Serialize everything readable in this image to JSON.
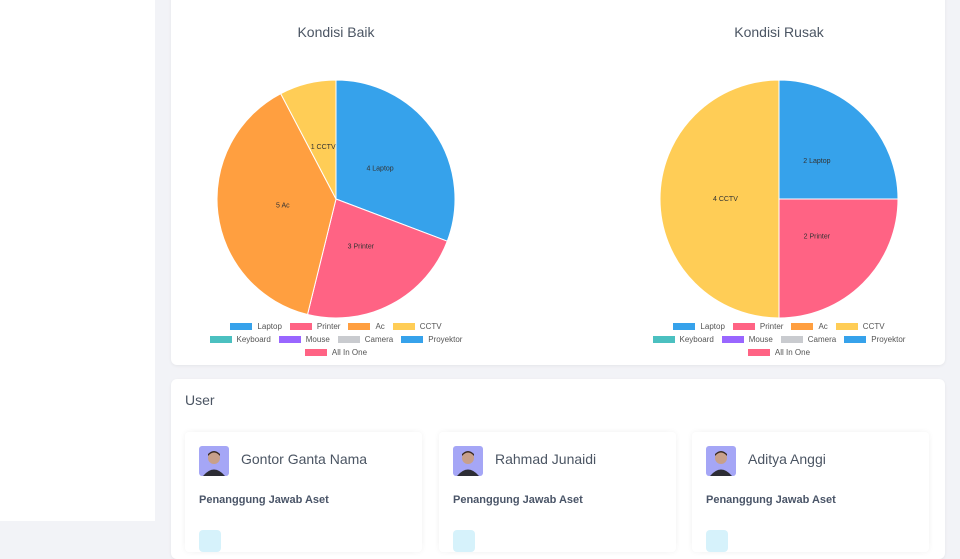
{
  "chart_data": [
    {
      "type": "pie",
      "title": "Kondisi Baik",
      "categories": [
        "Laptop",
        "Printer",
        "Ac",
        "CCTV",
        "Keyboard",
        "Mouse",
        "Camera",
        "Proyektor",
        "All In One"
      ],
      "values": [
        4,
        3,
        5,
        1,
        0,
        0,
        0,
        0,
        0
      ],
      "value_labels": [
        "4 Laptop",
        "3 Printer",
        "5 Ac",
        "1 CCTV",
        null,
        null,
        null,
        null,
        null
      ],
      "colors": [
        "#36a2eb",
        "#ff6384",
        "#ff9f40",
        "#ffcd56",
        "#4bc0c0",
        "#9966ff",
        "#c9cbcf",
        "#36a2eb",
        "#ff6384"
      ]
    },
    {
      "type": "pie",
      "title": "Kondisi Rusak",
      "categories": [
        "Laptop",
        "Printer",
        "Ac",
        "CCTV",
        "Keyboard",
        "Mouse",
        "Camera",
        "Proyektor",
        "All In One"
      ],
      "values": [
        2,
        2,
        0,
        4,
        0,
        0,
        0,
        0,
        0
      ],
      "value_labels": [
        "2 Laptop",
        "2 Printer",
        null,
        "4 CCTV",
        null,
        null,
        null,
        null,
        null
      ],
      "colors": [
        "#36a2eb",
        "#ff6384",
        "#ff9f40",
        "#ffcd56",
        "#4bc0c0",
        "#9966ff",
        "#c9cbcf",
        "#36a2eb",
        "#ff6384"
      ]
    }
  ],
  "user_section": {
    "title": "User",
    "users": [
      {
        "name": "Gontor Ganta Nama",
        "role": "Penanggung Jawab Aset"
      },
      {
        "name": "Rahmad Junaidi",
        "role": "Penanggung Jawab Aset"
      },
      {
        "name": "Aditya Anggi",
        "role": "Penanggung Jawab Aset"
      }
    ]
  }
}
